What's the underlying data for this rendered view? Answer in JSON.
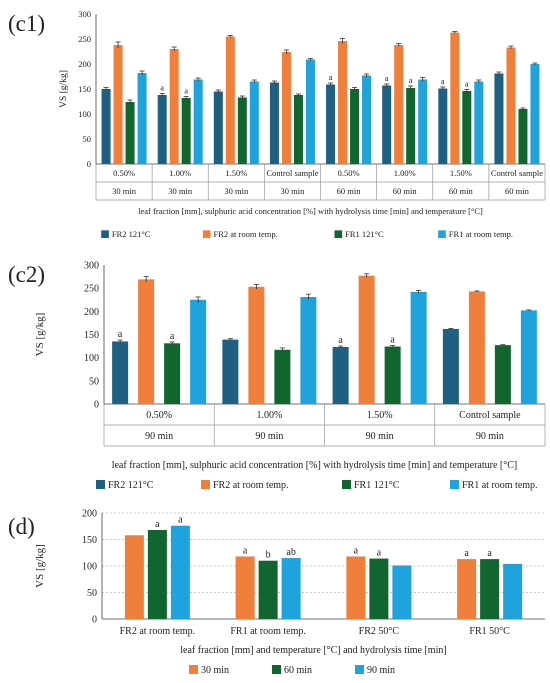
{
  "panels": [
    {
      "id": "c1",
      "label": "(c1)",
      "ylabel": "VS [g/kg]",
      "xlabel": "leaf fraction [mm], sulphuric acid concentration [%] with hydrolysis time [min] and temperature [°C]"
    },
    {
      "id": "c2",
      "label": "(c2)",
      "ylabel": "VS [g/kg]",
      "xlabel": "leaf fraction [mm], sulphuric acid concentration [%] with hydrolysis time [min] and temperature [°C]"
    },
    {
      "id": "d",
      "label": "(d)",
      "ylabel": "VS [g/kg]",
      "xlabel": "leaf fraction [mm] and temperature [°C] and hydrolysis time [min]"
    }
  ],
  "chart_data": [
    {
      "type": "bar",
      "panel": "(c1)",
      "ylabel": "VS [g/kg]",
      "xlabel": "leaf fraction [mm], sulphuric acid concentration [%] with hydrolysis time [min] and temperature [°C]",
      "ylim": [
        0,
        300
      ],
      "yticks": [
        0,
        50,
        100,
        150,
        200,
        250,
        300
      ],
      "grid": false,
      "legend": "bottom",
      "categories": [
        "0.50%",
        "1.00%",
        "1.50%",
        "Control sample",
        "0.50%",
        "1.00%",
        "1.50%",
        "Control sample"
      ],
      "categories_row2": [
        "30 min",
        "30 min",
        "30 min",
        "30 min",
        "60 min",
        "60 min",
        "60 min",
        "60 min"
      ],
      "series": [
        {
          "name": "FR2 121°C",
          "color": "#1f5f82",
          "values": [
            150,
            138,
            145,
            163,
            159,
            157,
            151,
            181
          ],
          "errors": [
            3,
            3,
            3,
            3,
            3,
            3,
            3,
            3
          ],
          "labels": [
            "",
            "a",
            "",
            "",
            "a",
            "a",
            "a",
            ""
          ]
        },
        {
          "name": "FR2 at room temp.",
          "color": "#f07f3c",
          "values": [
            238,
            230,
            255,
            224,
            246,
            238,
            263,
            233
          ],
          "errors": [
            6,
            4,
            2,
            4,
            5,
            3,
            2,
            3
          ],
          "labels": [
            "",
            "",
            "",
            "",
            "",
            "",
            "",
            ""
          ]
        },
        {
          "name": "FR1 121°C",
          "color": "#11662f",
          "values": [
            124,
            132,
            133,
            138,
            150,
            152,
            146,
            110
          ],
          "errors": [
            4,
            3,
            3,
            2,
            3,
            4,
            3,
            2
          ],
          "labels": [
            "",
            "a",
            "",
            "",
            "",
            "a",
            "a",
            ""
          ]
        },
        {
          "name": "FR1 at room temp.",
          "color": "#1ea3dc",
          "values": [
            182,
            169,
            165,
            209,
            177,
            169,
            165,
            200
          ],
          "errors": [
            4,
            3,
            3,
            2,
            3,
            4,
            3,
            2
          ],
          "labels": [
            "",
            "",
            "",
            "",
            "",
            "",
            "",
            ""
          ]
        }
      ]
    },
    {
      "type": "bar",
      "panel": "(c2)",
      "ylabel": "VS [g/kg]",
      "xlabel": "leaf fraction [mm], sulphuric acid concentration [%] with hydrolysis time [min] and temperature [°C]",
      "ylim": [
        0,
        300
      ],
      "yticks": [
        0,
        50,
        100,
        150,
        200,
        250,
        300
      ],
      "grid": false,
      "legend": "bottom",
      "categories": [
        "0.50%",
        "1.00%",
        "1.50%",
        "Control sample"
      ],
      "categories_row2": [
        "90 min",
        "90 min",
        "90 min",
        "90 min"
      ],
      "series": [
        {
          "name": "FR2 121°C",
          "color": "#1f5f82",
          "values": [
            135,
            139,
            123,
            162
          ],
          "errors": [
            3,
            2,
            2,
            1
          ],
          "labels": [
            "a",
            "",
            "a",
            ""
          ]
        },
        {
          "name": "FR2 at room temp.",
          "color": "#f07f3c",
          "values": [
            269,
            253,
            277,
            243
          ],
          "errors": [
            6,
            5,
            4,
            1
          ],
          "labels": [
            "",
            "",
            "",
            ""
          ]
        },
        {
          "name": "FR1 121°C",
          "color": "#11662f",
          "values": [
            131,
            117,
            124,
            127
          ],
          "errors": [
            3,
            4,
            2,
            1
          ],
          "labels": [
            "a",
            "",
            "a",
            ""
          ]
        },
        {
          "name": "FR1 at room temp.",
          "color": "#1ea3dc",
          "values": [
            225,
            231,
            242,
            202
          ],
          "errors": [
            6,
            6,
            3,
            1
          ],
          "labels": [
            "",
            "",
            "",
            ""
          ]
        }
      ]
    },
    {
      "type": "bar",
      "panel": "(d)",
      "ylabel": "VS [g/kg]",
      "xlabel": "leaf fraction [mm] and temperature [°C] and hydrolysis time [min]",
      "ylim": [
        0,
        200
      ],
      "yticks": [
        0,
        50,
        100,
        150,
        200
      ],
      "grid": true,
      "legend": "bottom",
      "categories": [
        "FR2 at room temp.",
        "FR1 at room temp.",
        "FR2 50°C",
        "FR1 50°C"
      ],
      "series": [
        {
          "name": "30 min",
          "color": "#f07f3c",
          "values": [
            158,
            118,
            118,
            113
          ],
          "errors": [
            0,
            0,
            0,
            0
          ],
          "labels": [
            "",
            "a",
            "a",
            "a"
          ]
        },
        {
          "name": "60 min",
          "color": "#11662f",
          "values": [
            168,
            110,
            114,
            113
          ],
          "errors": [
            0,
            0,
            0,
            0
          ],
          "labels": [
            "a",
            "b",
            "a",
            "a"
          ]
        },
        {
          "name": "90 min",
          "color": "#1ea3dc",
          "values": [
            176,
            115,
            101,
            104
          ],
          "errors": [
            0,
            0,
            0,
            0
          ],
          "labels": [
            "a",
            "ab",
            "",
            ""
          ]
        }
      ]
    }
  ]
}
